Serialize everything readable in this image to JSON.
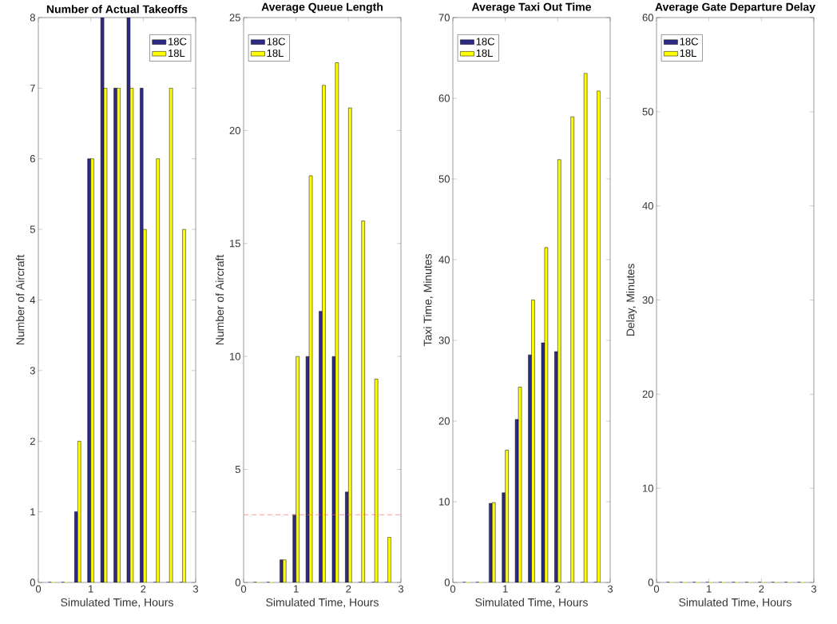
{
  "chart_data": [
    {
      "type": "bar",
      "title": "Number of Actual Takeoffs",
      "xlabel": "Simulated Time, Hours",
      "ylabel": "Number of Aircraft",
      "x": [
        0.25,
        0.5,
        0.75,
        1,
        1.25,
        1.5,
        1.75,
        2,
        2.25,
        2.5,
        2.75
      ],
      "xlim": [
        0,
        3
      ],
      "xticks": [
        0,
        1,
        2,
        3
      ],
      "ylim": [
        0,
        8
      ],
      "yticks": [
        0,
        1,
        2,
        3,
        4,
        5,
        6,
        7,
        8
      ],
      "legend": "top right",
      "series": [
        {
          "name": "18C",
          "color": "#2e2a86",
          "values": [
            0,
            0,
            1,
            6,
            8,
            7,
            8,
            7,
            0,
            0,
            0
          ]
        },
        {
          "name": "18L",
          "color": "#ffff00",
          "values": [
            0,
            0,
            2,
            6,
            7,
            7,
            7,
            5,
            6,
            7,
            5
          ]
        }
      ]
    },
    {
      "type": "bar",
      "title": "Average Queue Length",
      "xlabel": "Simulated Time, Hours",
      "ylabel": "Number of Aircraft",
      "x": [
        0.25,
        0.5,
        0.75,
        1,
        1.25,
        1.5,
        1.75,
        2,
        2.25,
        2.5,
        2.75
      ],
      "xlim": [
        0,
        3
      ],
      "xticks": [
        0,
        1,
        2,
        3
      ],
      "ylim": [
        0,
        25
      ],
      "yticks": [
        0,
        5,
        10,
        15,
        20,
        25
      ],
      "legend": "top left",
      "ref_lines": [
        {
          "axis": "y",
          "value": 3,
          "color": "#ff6666",
          "line_style": "dashed"
        }
      ],
      "series": [
        {
          "name": "18C",
          "color": "#2e2a86",
          "values": [
            0,
            0,
            1,
            3,
            10,
            12,
            10,
            4,
            0,
            0,
            0
          ]
        },
        {
          "name": "18L",
          "color": "#ffff00",
          "values": [
            0,
            0,
            1,
            10,
            18,
            22,
            23,
            21,
            16,
            9,
            2
          ]
        }
      ]
    },
    {
      "type": "bar",
      "title": "Average Taxi Out Time",
      "xlabel": "Simulated Time, Hours",
      "ylabel": "Taxi Time, Minutes",
      "x": [
        0.25,
        0.5,
        0.75,
        1,
        1.25,
        1.5,
        1.75,
        2,
        2.25,
        2.5,
        2.75
      ],
      "xlim": [
        0,
        3
      ],
      "xticks": [
        0,
        1,
        2,
        3
      ],
      "ylim": [
        0,
        70
      ],
      "yticks": [
        0,
        10,
        20,
        30,
        40,
        50,
        60,
        70
      ],
      "legend": "top left",
      "series": [
        {
          "name": "18C",
          "color": "#2e2a86",
          "values": [
            0,
            0,
            9.8,
            11.1,
            20.2,
            28.2,
            29.7,
            28.6,
            0,
            0,
            0
          ]
        },
        {
          "name": "18L",
          "color": "#ffff00",
          "values": [
            0,
            0,
            9.9,
            16.4,
            24.2,
            35.0,
            41.5,
            52.4,
            57.7,
            63.1,
            60.9
          ]
        }
      ]
    },
    {
      "type": "bar",
      "title": "Average Gate Departure Delay",
      "xlabel": "Simulated Time, Hours",
      "ylabel": "Delay, Minutes",
      "x": [
        0.25,
        0.5,
        0.75,
        1,
        1.25,
        1.5,
        1.75,
        2,
        2.25,
        2.5,
        2.75
      ],
      "xlim": [
        0,
        3
      ],
      "xticks": [
        0,
        1,
        2,
        3
      ],
      "ylim": [
        0,
        60
      ],
      "yticks": [
        0,
        10,
        20,
        30,
        40,
        50,
        60
      ],
      "legend": "top left",
      "series": [
        {
          "name": "18C",
          "color": "#2e2a86",
          "values": [
            0,
            0,
            0,
            0,
            0,
            0,
            0,
            0,
            0,
            0,
            0
          ]
        },
        {
          "name": "18L",
          "color": "#ffff00",
          "values": [
            0,
            0,
            0,
            0,
            0,
            0,
            0,
            0,
            0,
            0,
            0
          ]
        }
      ]
    }
  ]
}
